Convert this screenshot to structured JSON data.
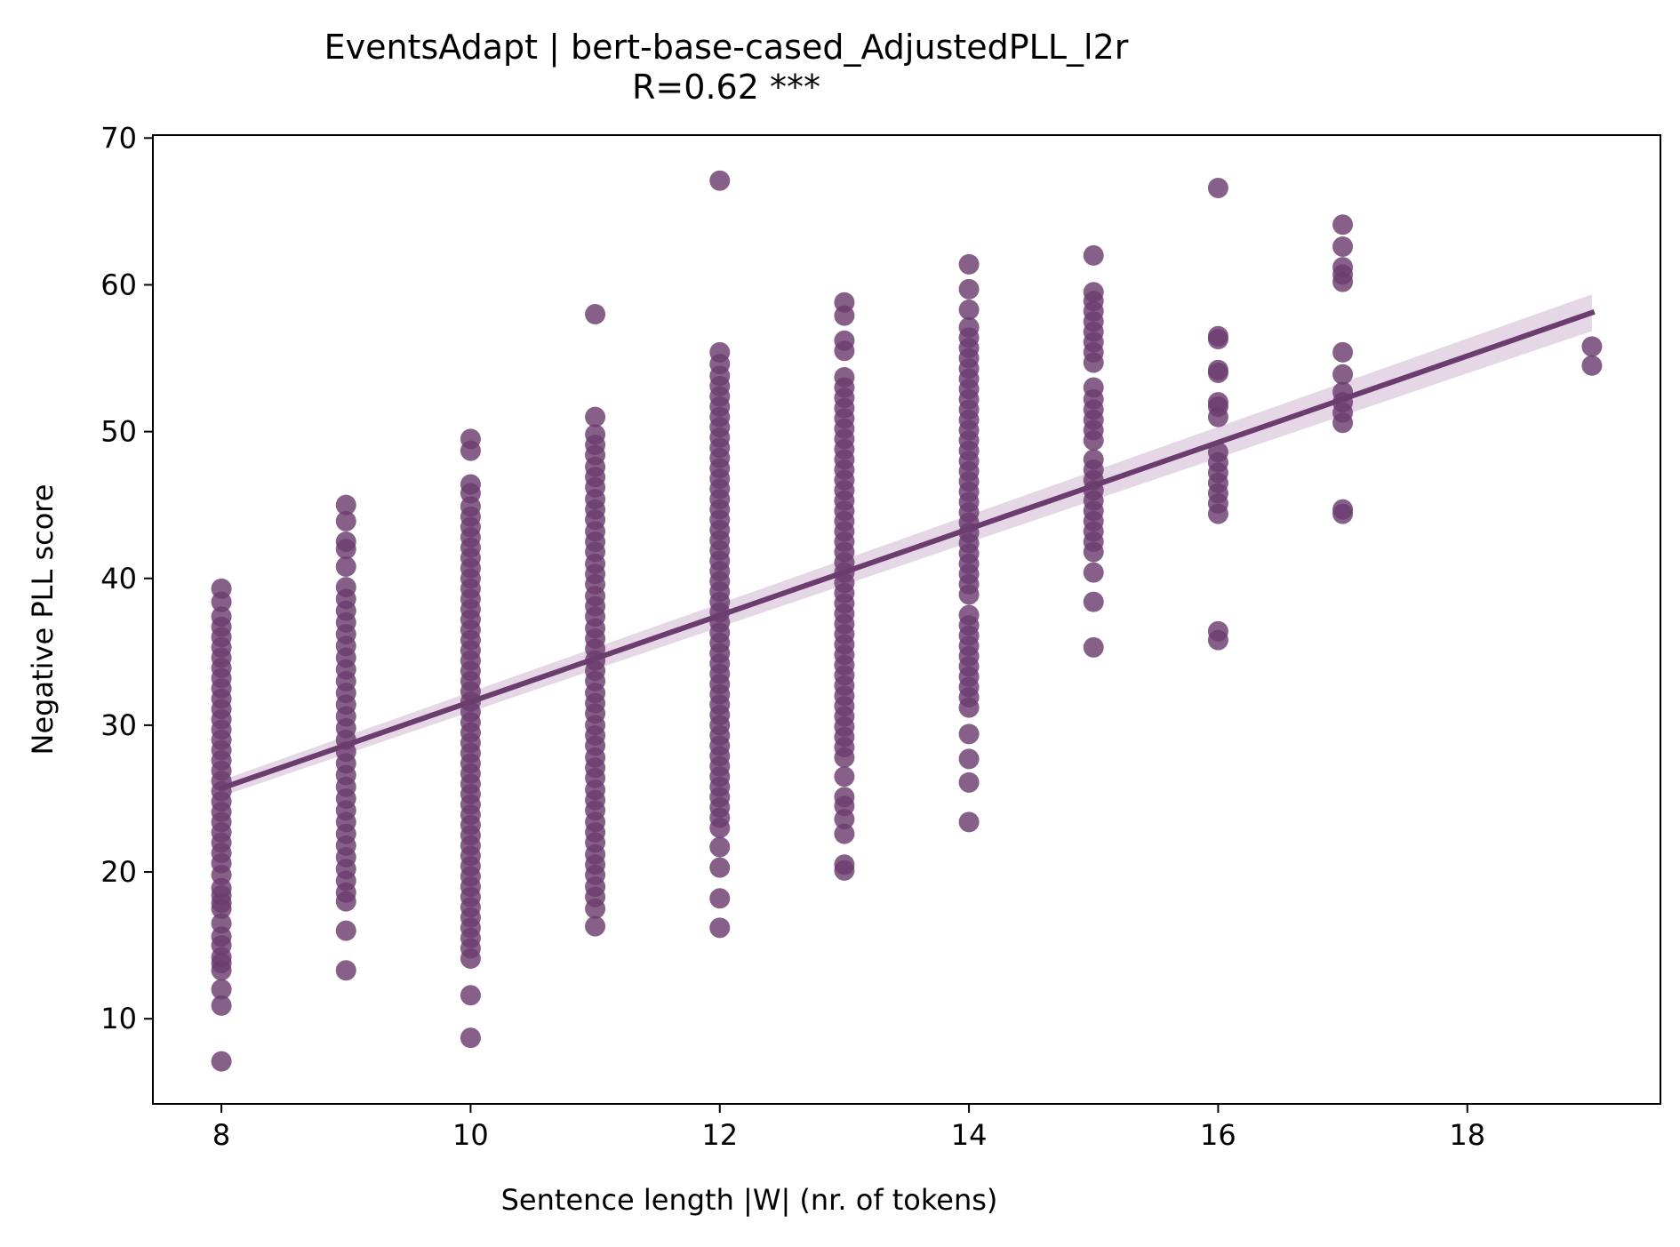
{
  "chart_data": {
    "type": "scatter",
    "title": "EventsAdapt | bert-base-cased_AdjustedPLL_l2r",
    "subtitle": "R=0.62 ***",
    "xlabel": "Sentence length |W| (nr. of tokens)",
    "ylabel": "Negative PLL score",
    "xlim": [
      7.45,
      19.55
    ],
    "ylim": [
      4.2,
      70.2
    ],
    "xticks": [
      8,
      10,
      12,
      14,
      16,
      18
    ],
    "yticks": [
      10,
      20,
      30,
      40,
      50,
      60,
      70
    ],
    "grid": false,
    "color": "#6b3d6f",
    "ci_color": "#dcc6dd",
    "regression": {
      "x": [
        8,
        19
      ],
      "y": [
        25.7,
        58.1
      ],
      "ci_halfwidth_at_ends": [
        0.55,
        1.25
      ]
    },
    "series": [
      {
        "points": [
          {
            "x": 8,
            "y": [
              7.1,
              10.9,
              12.0,
              13.3,
              13.8,
              14.2,
              15.0,
              15.6,
              16.5,
              17.5,
              17.9,
              18.4,
              18.9,
              19.8,
              20.6,
              21.3,
              22.0,
              22.7,
              23.4,
              24.1,
              24.8,
              25.5,
              26.2,
              26.9,
              27.6,
              28.3,
              29.0,
              29.7,
              30.4,
              31.1,
              31.8,
              32.5,
              33.2,
              33.9,
              34.6,
              35.3,
              36.0,
              36.7,
              37.4,
              38.4,
              39.3
            ]
          },
          {
            "x": 9,
            "y": [
              13.3,
              16.0,
              18.0,
              18.6,
              19.4,
              20.2,
              21.0,
              21.8,
              22.6,
              23.4,
              24.2,
              25.0,
              25.8,
              26.6,
              27.4,
              28.2,
              29.0,
              29.8,
              30.6,
              31.4,
              32.2,
              33.0,
              33.8,
              34.6,
              35.4,
              36.2,
              37.0,
              37.8,
              38.6,
              39.4,
              40.8,
              42.0,
              42.5,
              43.9,
              45.0
            ]
          },
          {
            "x": 10,
            "y": [
              8.7,
              11.6,
              14.1,
              14.8,
              15.5,
              16.2,
              16.9,
              17.6,
              18.3,
              19.0,
              19.7,
              20.4,
              21.1,
              21.8,
              22.5,
              23.2,
              23.9,
              24.6,
              25.3,
              26.0,
              26.7,
              27.4,
              28.1,
              28.8,
              29.5,
              30.2,
              30.9,
              31.6,
              32.3,
              33.0,
              33.7,
              34.4,
              35.1,
              35.8,
              36.5,
              37.2,
              37.9,
              38.6,
              39.3,
              40.0,
              40.7,
              41.4,
              42.1,
              42.8,
              43.5,
              44.2,
              44.9,
              45.8,
              46.4,
              48.7,
              49.5
            ]
          },
          {
            "x": 11,
            "y": [
              16.3,
              17.5,
              18.3,
              19.0,
              19.8,
              20.5,
              21.2,
              22.0,
              22.7,
              23.4,
              24.2,
              24.9,
              25.6,
              26.4,
              27.1,
              27.8,
              28.6,
              29.3,
              30.0,
              30.8,
              31.5,
              32.2,
              33.0,
              33.7,
              34.4,
              35.2,
              35.9,
              36.6,
              37.4,
              38.1,
              38.8,
              39.6,
              40.3,
              41.0,
              41.8,
              42.5,
              43.2,
              44.0,
              44.7,
              45.4,
              46.2,
              46.9,
              47.6,
              48.4,
              49.1,
              49.8,
              51.0,
              58.0
            ]
          },
          {
            "x": 12,
            "y": [
              16.2,
              18.2,
              20.3,
              21.7,
              23.0,
              23.7,
              24.4,
              25.1,
              25.8,
              26.5,
              27.2,
              27.9,
              28.6,
              29.3,
              30.0,
              30.7,
              31.4,
              32.1,
              32.8,
              33.5,
              34.2,
              34.9,
              35.6,
              36.3,
              37.0,
              37.7,
              38.4,
              39.1,
              39.8,
              40.5,
              41.2,
              41.9,
              42.6,
              43.3,
              44.0,
              44.7,
              45.4,
              46.1,
              46.8,
              47.5,
              48.2,
              48.9,
              49.6,
              50.3,
              51.0,
              51.7,
              52.4,
              53.1,
              53.8,
              54.6,
              55.4,
              67.1
            ]
          },
          {
            "x": 13,
            "y": [
              20.1,
              20.5,
              22.6,
              23.6,
              24.5,
              25.1,
              26.5,
              27.8,
              28.5,
              29.2,
              29.9,
              30.6,
              31.3,
              32.0,
              32.7,
              33.4,
              34.1,
              34.8,
              35.5,
              36.2,
              36.9,
              37.6,
              38.3,
              39.0,
              39.7,
              40.4,
              41.1,
              41.8,
              42.5,
              43.2,
              43.9,
              44.6,
              45.3,
              46.0,
              46.7,
              47.4,
              48.1,
              48.8,
              49.5,
              50.2,
              50.9,
              51.6,
              52.3,
              53.0,
              53.7,
              55.5,
              56.2,
              57.9,
              58.8
            ]
          },
          {
            "x": 14,
            "y": [
              23.4,
              26.1,
              27.7,
              29.4,
              31.2,
              31.9,
              32.6,
              33.3,
              34.0,
              34.7,
              35.4,
              36.1,
              36.8,
              37.5,
              38.9,
              39.6,
              40.3,
              41.0,
              41.7,
              42.4,
              43.1,
              43.8,
              44.5,
              45.2,
              45.9,
              46.6,
              47.3,
              48.0,
              48.7,
              49.4,
              50.1,
              50.8,
              51.5,
              52.2,
              52.9,
              53.6,
              54.3,
              55.0,
              55.7,
              56.4,
              57.1,
              58.3,
              59.7,
              61.4
            ]
          },
          {
            "x": 15,
            "y": [
              35.3,
              38.4,
              40.4,
              41.8,
              42.5,
              43.2,
              43.9,
              44.6,
              45.3,
              46.0,
              46.7,
              47.4,
              48.1,
              49.4,
              50.1,
              50.8,
              51.5,
              52.2,
              53.0,
              54.7,
              55.4,
              56.1,
              56.8,
              57.5,
              58.2,
              58.9,
              59.5,
              62.0
            ]
          },
          {
            "x": 16,
            "y": [
              35.8,
              36.4,
              44.4,
              45.1,
              45.8,
              46.5,
              47.2,
              47.9,
              48.6,
              51.0,
              51.7,
              52.0,
              54.0,
              54.2,
              56.3,
              56.5,
              66.6
            ]
          },
          {
            "x": 17,
            "y": [
              44.4,
              44.7,
              50.6,
              51.3,
              52.0,
              52.7,
              53.9,
              55.4,
              60.2,
              60.7,
              61.2,
              62.6,
              64.1
            ]
          },
          {
            "x": 19,
            "y": [
              54.5,
              55.8
            ]
          }
        ]
      }
    ]
  }
}
